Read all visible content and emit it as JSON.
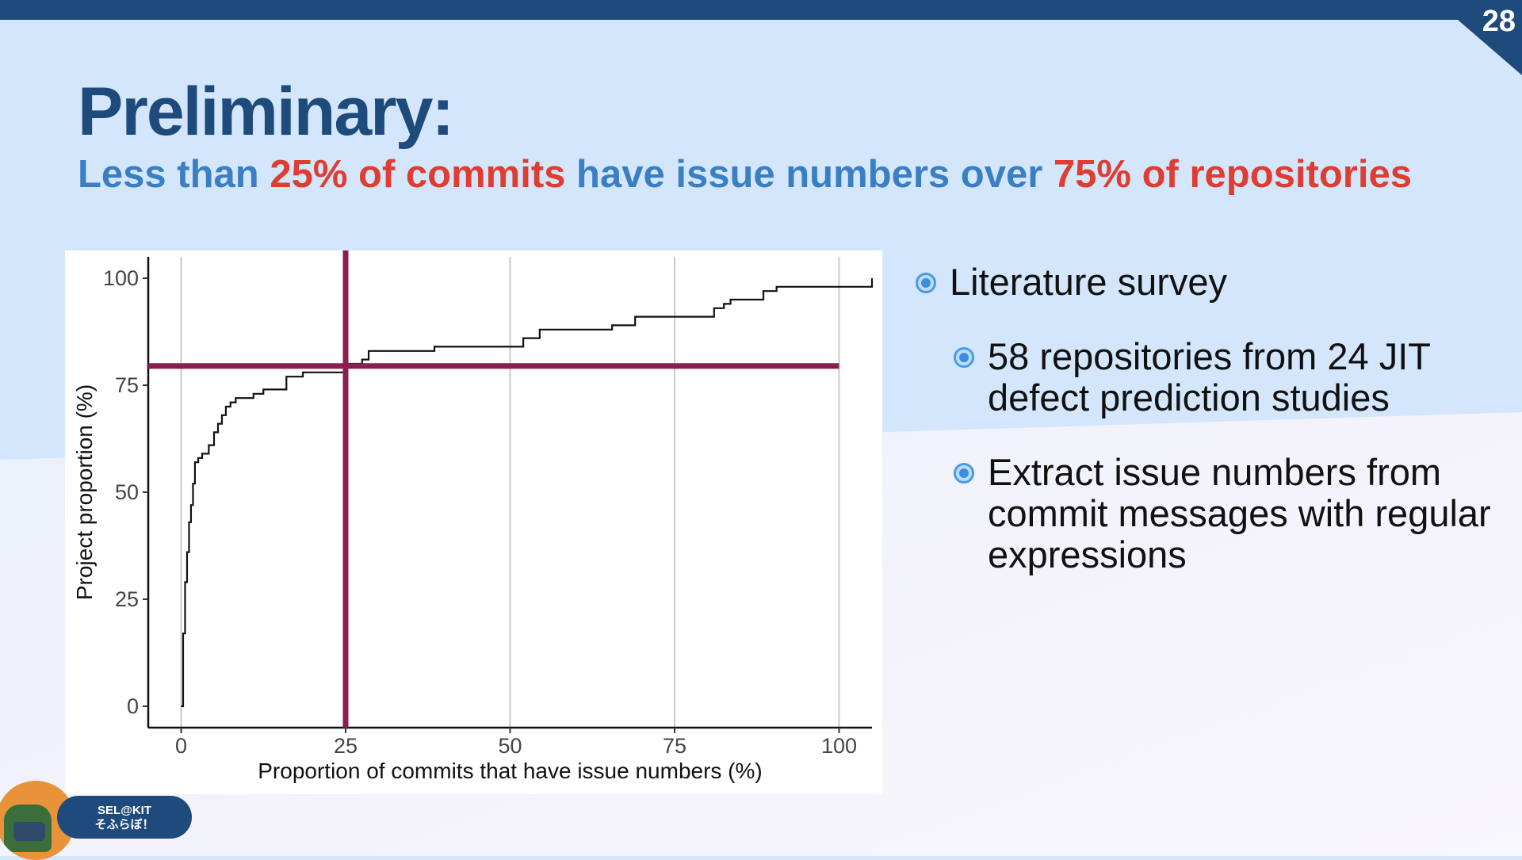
{
  "slide": {
    "page_number": "28",
    "title": "Preliminary:",
    "subtitle": {
      "part1": "Less than ",
      "part2": "25% of commits",
      "part3": " have issue numbers over ",
      "part4": "75% of repositories"
    }
  },
  "bullets": [
    {
      "level": 1,
      "text": "Literature survey"
    },
    {
      "level": 2,
      "text": "58 repositories from 24 JIT defect prediction studies"
    },
    {
      "level": 2,
      "text": "Extract issue numbers from commit messages with regular expressions"
    }
  ],
  "badge": {
    "line1": "SEL@KIT",
    "line2": "そふらぼ！"
  },
  "colors": {
    "accent_dark": "#1f4a7c",
    "accent_blue": "#3a7fc3",
    "highlight_red": "#e03c31",
    "reference_line": "#8b1e4f"
  },
  "chart_data": {
    "type": "line",
    "subtype": "step-ecdf",
    "xlabel": "Proportion of commits that have issue numbers (%)",
    "ylabel": "Project proportion (%)",
    "xlim": [
      -5,
      105
    ],
    "ylim": [
      -5,
      105
    ],
    "x_ticks": [
      0,
      25,
      50,
      75,
      100
    ],
    "y_ticks": [
      0,
      25,
      50,
      75,
      100
    ],
    "grid": "vertical-major",
    "series": [
      {
        "x": [
          0,
          0.3,
          0.6,
          0.9,
          1.2,
          1.5,
          1.8,
          2.1,
          2.6,
          3.2,
          4.2,
          5.0,
          5.6,
          6.2,
          6.8,
          7.5,
          8.3,
          11.0,
          12.5,
          16.0,
          18.5,
          25.0,
          27.5,
          28.5,
          38.5,
          52.0,
          54.5,
          65.5,
          69.0,
          81.0,
          82.5,
          83.5,
          88.5,
          90.5,
          105
        ],
        "y": [
          0,
          17,
          29,
          36,
          43,
          47,
          52,
          57,
          58,
          59,
          61,
          64,
          66,
          68,
          70,
          71,
          72,
          73,
          74,
          77,
          78,
          80,
          81,
          83,
          84,
          86,
          88,
          89,
          91,
          93,
          94,
          95,
          97,
          98,
          100
        ]
      }
    ],
    "reference_lines": [
      {
        "orientation": "vertical",
        "value": 25
      },
      {
        "orientation": "horizontal",
        "value": 79.5
      }
    ]
  }
}
